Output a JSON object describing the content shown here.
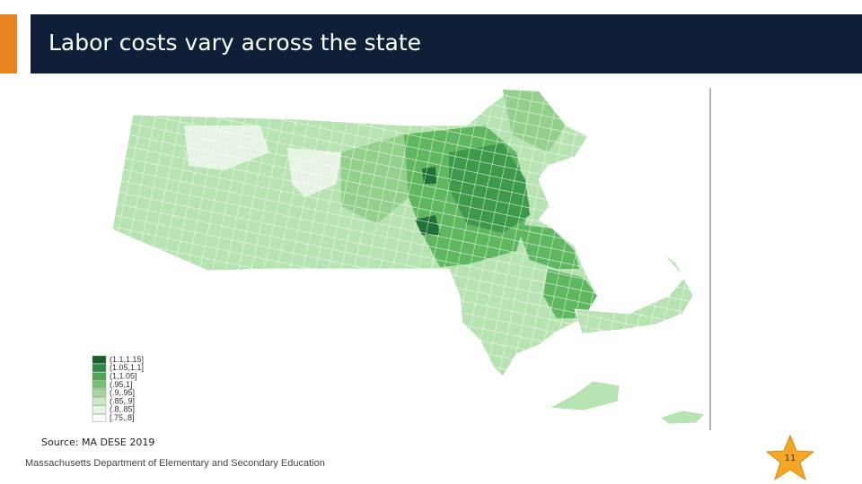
{
  "header": {
    "title": "Labor costs vary across the state"
  },
  "legend": {
    "items": [
      {
        "label": "(1.1,1.15]",
        "color": "#1b5e2e"
      },
      {
        "label": "(1.05,1.1]",
        "color": "#2f8a44"
      },
      {
        "label": "(1,1.05]",
        "color": "#4ea756"
      },
      {
        "label": "(.95,1]",
        "color": "#74c171"
      },
      {
        "label": "(.9,.95]",
        "color": "#a3d79c"
      },
      {
        "label": "(.85,.9]",
        "color": "#c9eac3"
      },
      {
        "label": "(.8,.85]",
        "color": "#e6f4e3"
      },
      {
        "label": "[.75,.8]",
        "color": "#f7fcf6"
      }
    ]
  },
  "footer": {
    "source": "Source: MA DESE 2019",
    "organization": "Massachusetts Department of Elementary and Secondary Education",
    "page_number": "11"
  }
}
